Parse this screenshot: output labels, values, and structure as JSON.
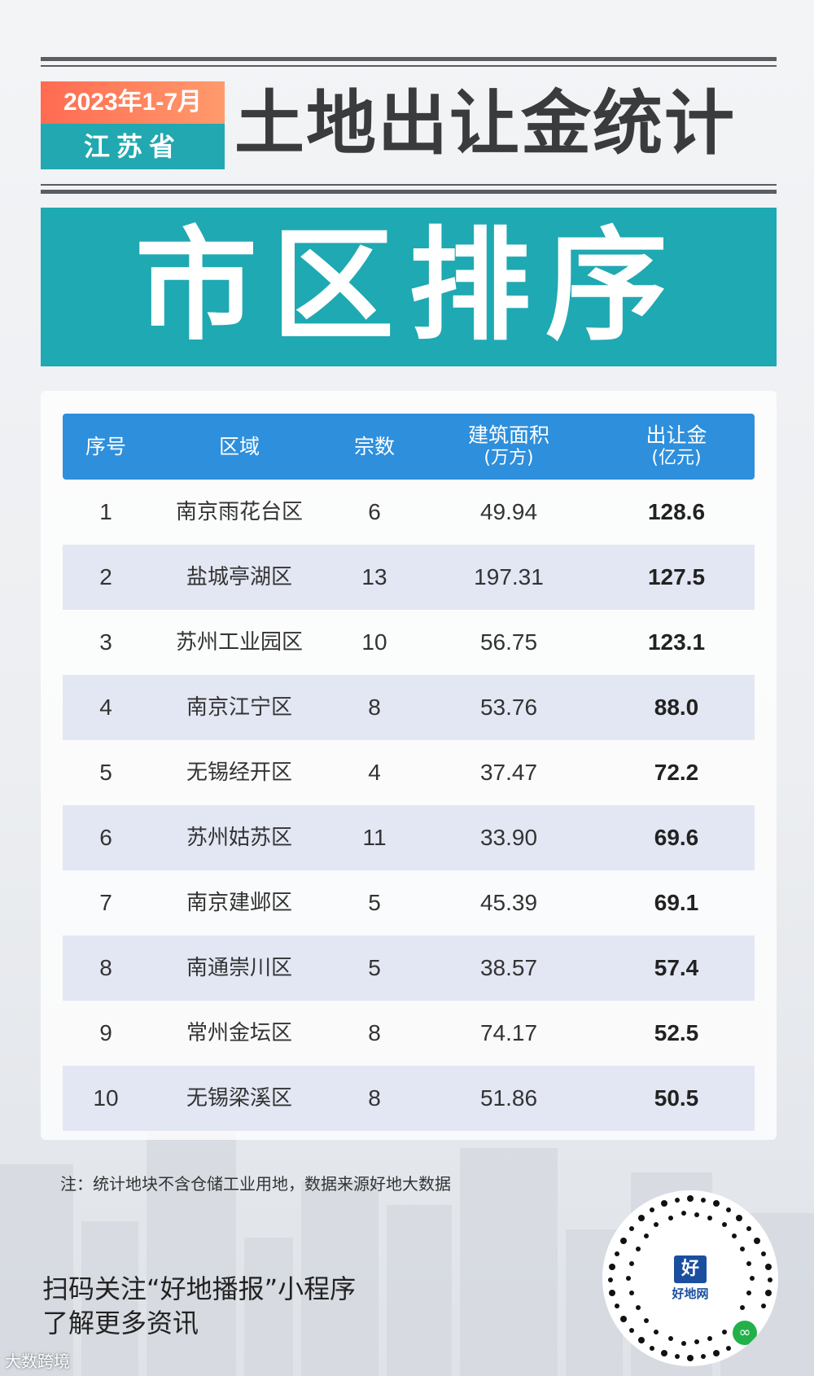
{
  "header": {
    "badge_period": "2023年1-7月",
    "badge_region": "江苏省",
    "title": "土地出让金统计"
  },
  "banner": {
    "title": "市区排序"
  },
  "table": {
    "columns": [
      {
        "label": "序号",
        "unit": ""
      },
      {
        "label": "区域",
        "unit": ""
      },
      {
        "label": "宗数",
        "unit": ""
      },
      {
        "label": "建筑面积",
        "unit": "(万方)"
      },
      {
        "label": "出让金",
        "unit": "(亿元)"
      }
    ],
    "rows": [
      {
        "rank": "1",
        "district": "南京雨花台区",
        "parcels": "6",
        "area": "49.94",
        "amount": "128.6"
      },
      {
        "rank": "2",
        "district": "盐城亭湖区",
        "parcels": "13",
        "area": "197.31",
        "amount": "127.5"
      },
      {
        "rank": "3",
        "district": "苏州工业园区",
        "parcels": "10",
        "area": "56.75",
        "amount": "123.1"
      },
      {
        "rank": "4",
        "district": "南京江宁区",
        "parcels": "8",
        "area": "53.76",
        "amount": "88.0"
      },
      {
        "rank": "5",
        "district": "无锡经开区",
        "parcels": "4",
        "area": "37.47",
        "amount": "72.2"
      },
      {
        "rank": "6",
        "district": "苏州姑苏区",
        "parcels": "11",
        "area": "33.90",
        "amount": "69.6"
      },
      {
        "rank": "7",
        "district": "南京建邺区",
        "parcels": "5",
        "area": "45.39",
        "amount": "69.1"
      },
      {
        "rank": "8",
        "district": "南通崇川区",
        "parcels": "5",
        "area": "38.57",
        "amount": "57.4"
      },
      {
        "rank": "9",
        "district": "常州金坛区",
        "parcels": "8",
        "area": "74.17",
        "amount": "52.5"
      },
      {
        "rank": "10",
        "district": "无锡梁溪区",
        "parcels": "8",
        "area": "51.86",
        "amount": "50.5"
      }
    ]
  },
  "note": "注：统计地块不含仓储工业用地，数据来源好地大数据",
  "footer": {
    "follow_line1": "扫码关注“好地播报”小程序",
    "follow_line2": "了解更多资讯",
    "corner_text": "大数跨境"
  },
  "qr": {
    "logo_mark": "好",
    "logo_text": "好地网",
    "wechat_icon": "wechat-miniprogram-icon"
  },
  "colors": {
    "teal": "#1fa9b2",
    "orange": "#ff7a5c",
    "table_header": "#2e8fdc",
    "row_alt": "#e3e7f3",
    "title_gray": "#3a3b3d"
  }
}
